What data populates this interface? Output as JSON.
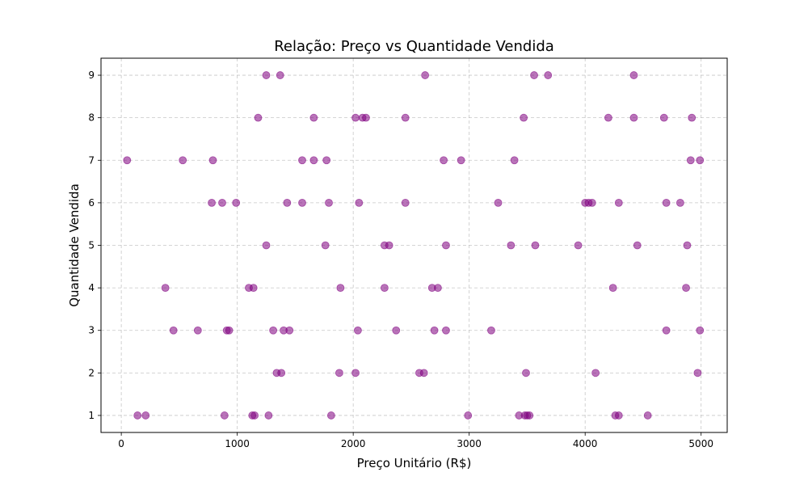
{
  "chart_data": {
    "type": "scatter",
    "title": "Relação: Preço vs Quantidade Vendida",
    "xlabel": "Preço Unitário (R$)",
    "ylabel": "Quantidade Vendida",
    "xlim": [
      -175,
      5225
    ],
    "ylim": [
      0.6,
      9.4
    ],
    "x_ticks": [
      0,
      1000,
      2000,
      3000,
      4000,
      5000
    ],
    "y_ticks": [
      1,
      2,
      3,
      4,
      5,
      6,
      7,
      8,
      9
    ],
    "grid": true,
    "point_color": "#800080",
    "points": [
      {
        "x": 1250,
        "y": 9
      },
      {
        "x": 1370,
        "y": 9
      },
      {
        "x": 2620,
        "y": 9
      },
      {
        "x": 3560,
        "y": 9
      },
      {
        "x": 3680,
        "y": 9
      },
      {
        "x": 4420,
        "y": 9
      },
      {
        "x": 1180,
        "y": 8
      },
      {
        "x": 1660,
        "y": 8
      },
      {
        "x": 2020,
        "y": 8
      },
      {
        "x": 2080,
        "y": 8
      },
      {
        "x": 2110,
        "y": 8
      },
      {
        "x": 2450,
        "y": 8
      },
      {
        "x": 3470,
        "y": 8
      },
      {
        "x": 4200,
        "y": 8
      },
      {
        "x": 4420,
        "y": 8
      },
      {
        "x": 4680,
        "y": 8
      },
      {
        "x": 4920,
        "y": 8
      },
      {
        "x": 50,
        "y": 7
      },
      {
        "x": 530,
        "y": 7
      },
      {
        "x": 790,
        "y": 7
      },
      {
        "x": 1560,
        "y": 7
      },
      {
        "x": 1660,
        "y": 7
      },
      {
        "x": 1770,
        "y": 7
      },
      {
        "x": 2780,
        "y": 7
      },
      {
        "x": 2930,
        "y": 7
      },
      {
        "x": 3390,
        "y": 7
      },
      {
        "x": 4910,
        "y": 7
      },
      {
        "x": 4990,
        "y": 7
      },
      {
        "x": 780,
        "y": 6
      },
      {
        "x": 870,
        "y": 6
      },
      {
        "x": 990,
        "y": 6
      },
      {
        "x": 1430,
        "y": 6
      },
      {
        "x": 1560,
        "y": 6
      },
      {
        "x": 1790,
        "y": 6
      },
      {
        "x": 2050,
        "y": 6
      },
      {
        "x": 2450,
        "y": 6
      },
      {
        "x": 3250,
        "y": 6
      },
      {
        "x": 4000,
        "y": 6
      },
      {
        "x": 4030,
        "y": 6
      },
      {
        "x": 4060,
        "y": 6
      },
      {
        "x": 4290,
        "y": 6
      },
      {
        "x": 4700,
        "y": 6
      },
      {
        "x": 4820,
        "y": 6
      },
      {
        "x": 1250,
        "y": 5
      },
      {
        "x": 1760,
        "y": 5
      },
      {
        "x": 2270,
        "y": 5
      },
      {
        "x": 2310,
        "y": 5
      },
      {
        "x": 2800,
        "y": 5
      },
      {
        "x": 3360,
        "y": 5
      },
      {
        "x": 3570,
        "y": 5
      },
      {
        "x": 3940,
        "y": 5
      },
      {
        "x": 4450,
        "y": 5
      },
      {
        "x": 4880,
        "y": 5
      },
      {
        "x": 380,
        "y": 4
      },
      {
        "x": 1100,
        "y": 4
      },
      {
        "x": 1140,
        "y": 4
      },
      {
        "x": 1890,
        "y": 4
      },
      {
        "x": 2270,
        "y": 4
      },
      {
        "x": 2680,
        "y": 4
      },
      {
        "x": 2730,
        "y": 4
      },
      {
        "x": 4240,
        "y": 4
      },
      {
        "x": 4870,
        "y": 4
      },
      {
        "x": 450,
        "y": 3
      },
      {
        "x": 660,
        "y": 3
      },
      {
        "x": 910,
        "y": 3
      },
      {
        "x": 930,
        "y": 3
      },
      {
        "x": 1310,
        "y": 3
      },
      {
        "x": 1400,
        "y": 3
      },
      {
        "x": 1450,
        "y": 3
      },
      {
        "x": 2040,
        "y": 3
      },
      {
        "x": 2370,
        "y": 3
      },
      {
        "x": 2700,
        "y": 3
      },
      {
        "x": 2800,
        "y": 3
      },
      {
        "x": 3190,
        "y": 3
      },
      {
        "x": 4700,
        "y": 3
      },
      {
        "x": 4990,
        "y": 3
      },
      {
        "x": 1340,
        "y": 2
      },
      {
        "x": 1380,
        "y": 2
      },
      {
        "x": 1880,
        "y": 2
      },
      {
        "x": 2020,
        "y": 2
      },
      {
        "x": 2570,
        "y": 2
      },
      {
        "x": 2610,
        "y": 2
      },
      {
        "x": 3490,
        "y": 2
      },
      {
        "x": 4090,
        "y": 2
      },
      {
        "x": 4970,
        "y": 2
      },
      {
        "x": 140,
        "y": 1
      },
      {
        "x": 210,
        "y": 1
      },
      {
        "x": 890,
        "y": 1
      },
      {
        "x": 1130,
        "y": 1
      },
      {
        "x": 1150,
        "y": 1
      },
      {
        "x": 1270,
        "y": 1
      },
      {
        "x": 1810,
        "y": 1
      },
      {
        "x": 2990,
        "y": 1
      },
      {
        "x": 3430,
        "y": 1
      },
      {
        "x": 3480,
        "y": 1
      },
      {
        "x": 3500,
        "y": 1
      },
      {
        "x": 3520,
        "y": 1
      },
      {
        "x": 4260,
        "y": 1
      },
      {
        "x": 4290,
        "y": 1
      },
      {
        "x": 4540,
        "y": 1
      }
    ]
  }
}
